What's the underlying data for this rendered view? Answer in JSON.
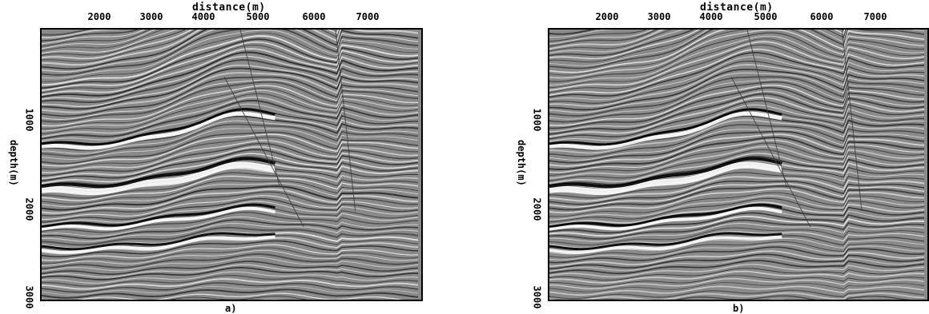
{
  "panels": [
    {
      "id": "a",
      "xlabel": "distance(m)",
      "ylabel": "depth(m)",
      "xticks": [
        "2000",
        "3000",
        "4000",
        "5000",
        "6000",
        "7000"
      ],
      "yticks": [
        "1000",
        "2000",
        "3000"
      ],
      "caption": "a)"
    },
    {
      "id": "b",
      "xlabel": "distance(m)",
      "ylabel": "depth(m)",
      "xticks": [
        "2000",
        "3000",
        "4000",
        "5000",
        "6000",
        "7000"
      ],
      "yticks": [
        "1000",
        "2000",
        "3000"
      ],
      "caption": "b)"
    }
  ],
  "colors": {
    "background": "#ffffff",
    "image_mid": "#8a8a8a",
    "frame": "#000000"
  }
}
